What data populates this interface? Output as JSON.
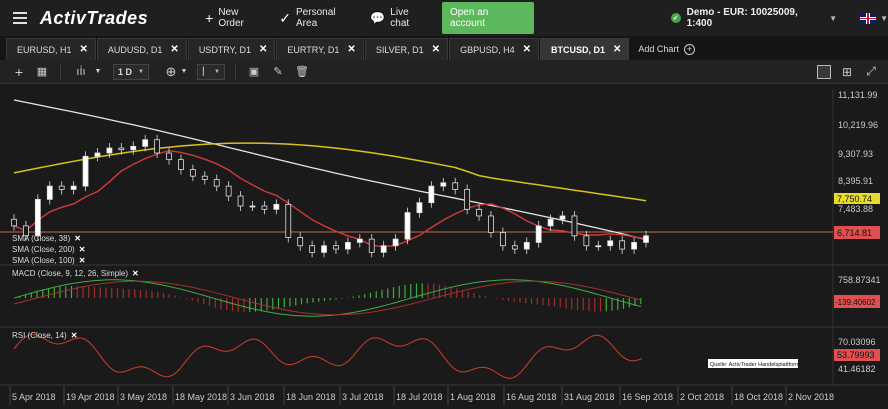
{
  "topbar": {
    "logo": "ActivTrades",
    "new_order": "New Order",
    "personal_area": "Personal Area",
    "live_chat": "Live chat",
    "open_account": "Open an account",
    "account": "Demo - EUR: 10025009, 1:400"
  },
  "tabs": [
    {
      "label": "EURUSD, H1",
      "active": false
    },
    {
      "label": "AUDUSD, D1",
      "active": false
    },
    {
      "label": "USDTRY, D1",
      "active": false
    },
    {
      "label": "EURTRY, D1",
      "active": false
    },
    {
      "label": "SILVER, D1",
      "active": false
    },
    {
      "label": "GBPUSD, H4",
      "active": false
    },
    {
      "label": "BTCUSD, D1",
      "active": true
    }
  ],
  "add_chart": "Add Chart",
  "toolbar": {
    "timeframe": "1 D"
  },
  "icons": {
    "menu": "hamburger-icon",
    "new_order": "plus-icon",
    "personal_area": "check-icon",
    "live_chat": "chat-icon",
    "close": "close-icon",
    "crosshair": "crosshair-icon",
    "grid": "grid-icon",
    "candles": "candlestick-icon",
    "add_indicator": "add-circle-icon",
    "line_tool": "line-tool-icon",
    "screenshot": "camera-icon",
    "draw": "pencil-icon",
    "delete": "trash-icon",
    "layout_single": "single-layout-icon",
    "layout_grid": "four-layout-icon",
    "fullscreen": "expand-icon"
  },
  "colors": {
    "sma38": "#d23a3a",
    "sma200": "#d8c21c",
    "sma100": "#e6e6e6",
    "macd_up": "#3fae3f",
    "macd_down": "#a03030",
    "rsi": "#c0392b",
    "price_tag": "#e05050",
    "sma200_tag": "#e8dc2a",
    "accent": "#5cb85c"
  },
  "chart_data": {
    "type": "candlestick",
    "main": {
      "price_levels": [
        "11,131.99",
        "10,219.96",
        "9,307.93",
        "8,395.91",
        "7,483.88"
      ],
      "current_price": "6,714.81",
      "sma200_value": "7,750.74",
      "indicators": [
        "SMA (Close, 38)",
        "SMA (Close, 200)",
        "SMA (Close, 100)"
      ],
      "close_series": [
        7000,
        6700,
        7800,
        8200,
        8100,
        8200,
        9100,
        9200,
        9350,
        9300,
        9400,
        9600,
        9200,
        9000,
        8700,
        8500,
        8400,
        8200,
        7900,
        7600,
        7600,
        7500,
        7650,
        6650,
        6400,
        6200,
        6400,
        6300,
        6500,
        6600,
        6200,
        6400,
        6600,
        7400,
        7700,
        8200,
        8300,
        8100,
        7500,
        7300,
        6800,
        6400,
        6300,
        6500,
        7000,
        7200,
        7300,
        6700,
        6400,
        6400,
        6550,
        6300,
        6500,
        6700
      ]
    },
    "macd": {
      "label": "MACD (Close, 9, 12, 26, Simple)",
      "levels": [
        "758.87341",
        "-139.40602"
      ]
    },
    "rsi": {
      "label": "RSI (Close, 14)",
      "levels": [
        "70.03096",
        "53.79993",
        "41.46182"
      ],
      "watermark": "Quelle: ActivTrader Handelsplattform"
    },
    "x_dates": [
      "5 Apr 2018",
      "19 Apr 2018",
      "3 May 2018",
      "18 May 2018",
      "3 Jun 2018",
      "18 Jun 2018",
      "3 Jul 2018",
      "18 Jul 2018",
      "1 Aug 2018",
      "16 Aug 2018",
      "31 Aug 2018",
      "16 Sep 2018",
      "2 Oct 2018",
      "18 Oct 2018",
      "2 Nov 2018"
    ]
  }
}
